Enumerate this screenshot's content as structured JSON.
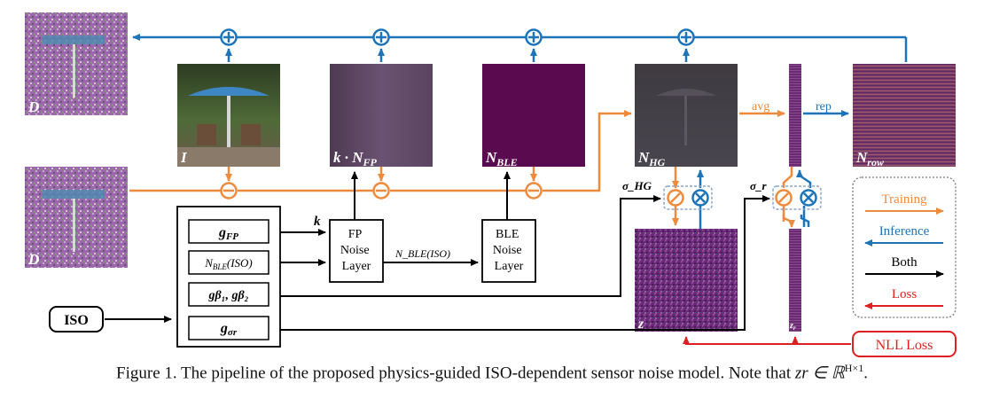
{
  "images": {
    "D_top": "D",
    "D_bottom": "D",
    "I": "I",
    "kNFP": {
      "pre": "k · N",
      "sub": "FP"
    },
    "NBLE": {
      "pre": "N",
      "sub": "BLE"
    },
    "NHG": {
      "pre": "N",
      "sub": "HG"
    },
    "Nrow": {
      "pre": "N",
      "sub": "row"
    },
    "z": "z",
    "zr": {
      "pre": "z",
      "sub": "r"
    }
  },
  "params_box": {
    "gFP": {
      "pre": "g",
      "sub": "FP"
    },
    "NBLE_ISO": {
      "pre": "N",
      "sub": "BLE",
      "post": "(ISO)"
    },
    "gbeta": {
      "text": "gβ₁, gβ₂"
    },
    "gsigma": {
      "pre": "g",
      "sub": "σr"
    }
  },
  "iso_label": "ISO",
  "layers": {
    "fp": [
      "FP",
      "Noise",
      "Layer"
    ],
    "ble": [
      "BLE",
      "Noise",
      "Layer"
    ]
  },
  "edge_labels": {
    "k": "k",
    "nble_iso": "N_BLE(ISO)",
    "avg": "avg",
    "rep": "rep",
    "sigma_hg": "σ_HG",
    "sigma_r": "σ_r"
  },
  "legend": {
    "training": "Training",
    "inference": "Inference",
    "both": "Both",
    "loss": "Loss"
  },
  "nll_loss": "NLL Loss",
  "colors": {
    "orange": "#ee8a3c",
    "blue": "#1d74b8",
    "red": "#e02020",
    "black": "#000000",
    "purple": "#5a0a4e"
  },
  "caption": {
    "prefix": "Figure 1. The pipeline of the proposed physics-guided ISO-dependent sensor noise model. Note that ",
    "math": "zr ∈ ℝ",
    "sup": "H×1",
    "suffix": "."
  }
}
